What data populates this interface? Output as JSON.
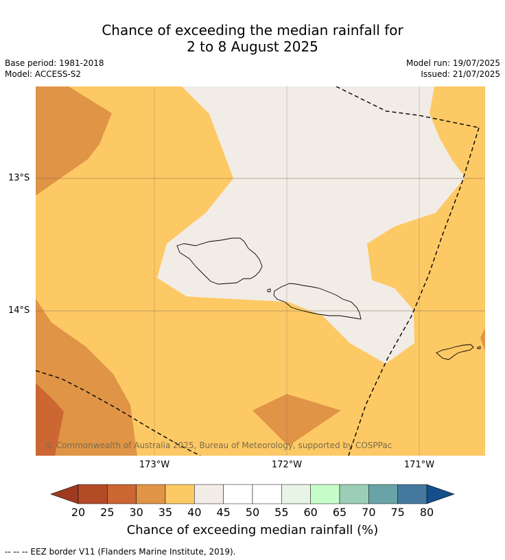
{
  "title_line1": "Chance of exceeding the median rainfall for",
  "title_line2": "2 to 8 August 2025",
  "meta": {
    "base_period": "Base period: 1981-2018",
    "model": "Model: ACCESS-S2",
    "model_run": "Model run: 19/07/2025",
    "issued": "Issued: 21/07/2025"
  },
  "map": {
    "lat_labels": [
      "13°S",
      "14°S"
    ],
    "lon_labels": [
      "173°W",
      "172°W",
      "171°W"
    ],
    "copyright": "© Commonwealth of Australia 2025, Bureau of Meteorology, supported by COSPPac"
  },
  "colorbar": {
    "ticks": [
      "20",
      "25",
      "30",
      "35",
      "40",
      "45",
      "50",
      "55",
      "60",
      "65",
      "70",
      "75",
      "80"
    ],
    "colors": [
      "#9e3a21",
      "#b34b27",
      "#cc6633",
      "#e09446",
      "#fdc965",
      "#f2ece6",
      "#ffffff",
      "#ffffff",
      "#e8f5e6",
      "#c7fdc9",
      "#9bcdb7",
      "#6aa3a7",
      "#44789e",
      "#144f8a"
    ],
    "title": "Chance of exceeding median rainfall (%)"
  },
  "footer": "--  --  -- EEZ border V11 (Flanders Marine Institute, 2019)."
}
